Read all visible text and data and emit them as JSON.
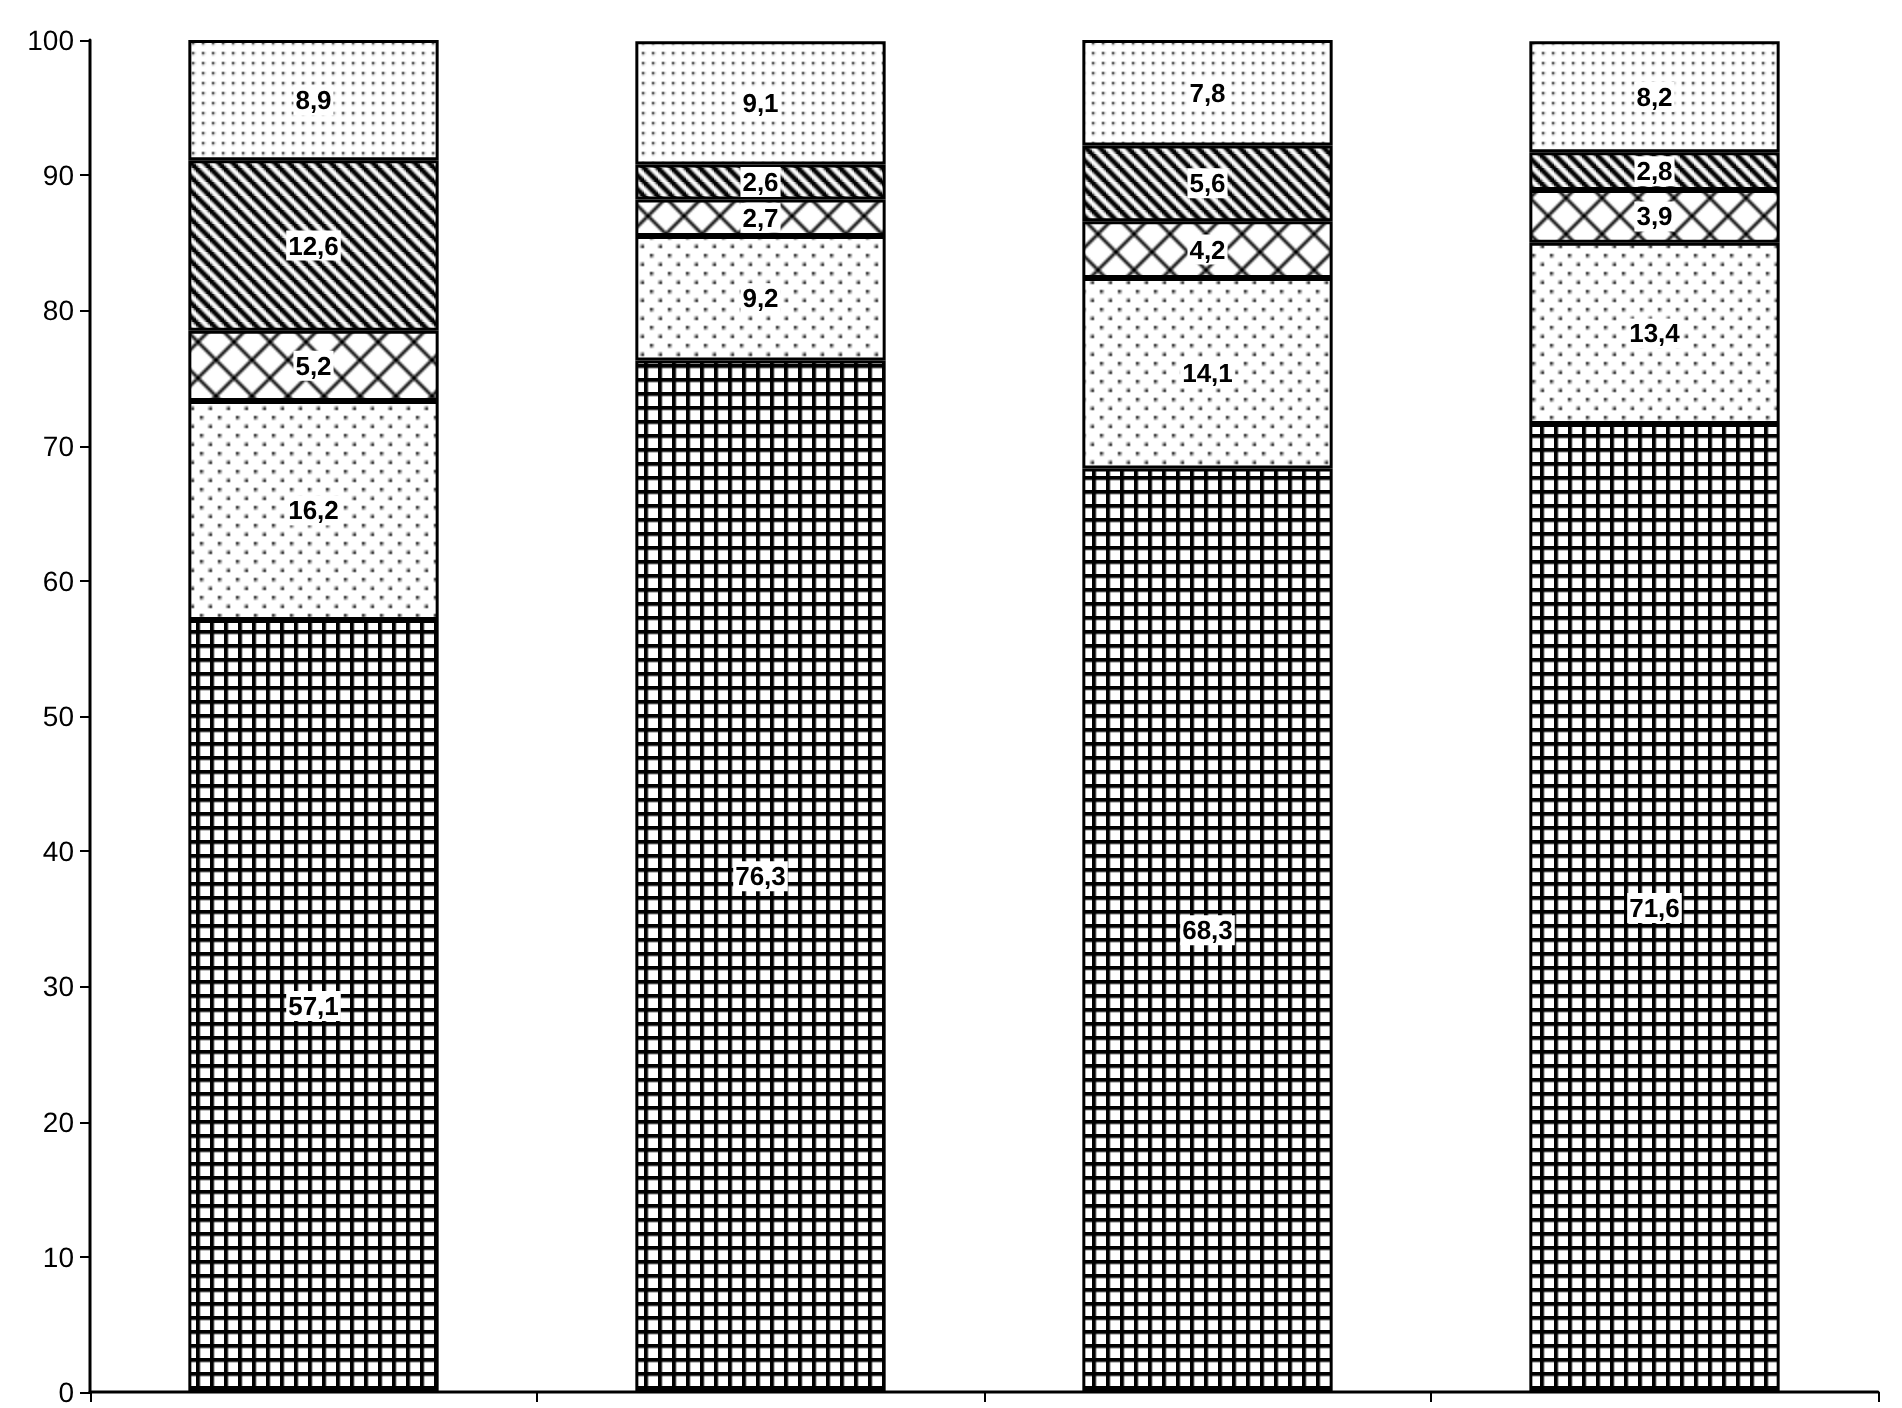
{
  "chart_data": {
    "type": "bar",
    "stacked": true,
    "categories": [
      null,
      null,
      null,
      null
    ],
    "series": [
      {
        "color": "#000000",
        "values": [
          57.1,
          76.3,
          68.3,
          71.6
        ],
        "value_labels": [
          "57,1",
          "76,3",
          "68,3",
          "71,6"
        ]
      },
      {
        "color": "#000000",
        "values": [
          16.2,
          9.2,
          14.1,
          13.4
        ],
        "value_labels": [
          "16,2",
          "9,2",
          "14,1",
          "13,4"
        ]
      },
      {
        "color": "#000000",
        "values": [
          5.2,
          2.7,
          4.2,
          3.9
        ],
        "value_labels": [
          "5,2",
          "2,7",
          "4,2",
          "3,9"
        ]
      },
      {
        "color": "#000000",
        "values": [
          12.6,
          2.6,
          5.6,
          2.8
        ],
        "value_labels": [
          "12,6",
          "2,6",
          "5,6",
          "2,8"
        ]
      },
      {
        "color": "#000000",
        "values": [
          8.9,
          9.1,
          7.8,
          8.2
        ],
        "value_labels": [
          "8,9",
          "9,1",
          "7,8",
          "8,2"
        ]
      }
    ],
    "ylim": [
      0,
      100
    ],
    "yticks": [
      0,
      10,
      20,
      30,
      40,
      50,
      60,
      70,
      80,
      90,
      100
    ],
    "grid": false
  }
}
